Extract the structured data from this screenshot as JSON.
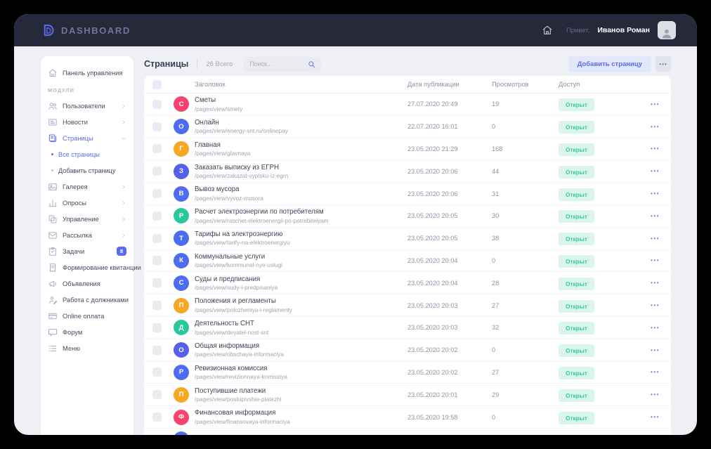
{
  "colors": {
    "accent": "#5b6af0",
    "topbar_bg": "#262939",
    "badge_bg": "#daf5ec",
    "badge_text": "#38c89a",
    "page_bg": "#eff0f6"
  },
  "icons": {
    "more_glyph": "•••",
    "row_menu_glyph": "•••"
  },
  "topbar": {
    "logo_text": "DASHBOARD",
    "greeting_prefix": "Привет,",
    "user_name": "Иванов Роман"
  },
  "sidebar": {
    "items": [
      {
        "id": "dashboard",
        "label": "Панель управления",
        "icon": "home-icon"
      },
      {
        "type": "section",
        "label": "МОДУЛИ"
      },
      {
        "id": "users",
        "label": "Пользователи",
        "icon": "users-icon",
        "chevron": true
      },
      {
        "id": "news",
        "label": "Новости",
        "icon": "news-icon",
        "chevron": true
      },
      {
        "id": "pages",
        "label": "Страницы",
        "icon": "pages-icon",
        "chevron": true,
        "expanded": true,
        "active": true,
        "children": [
          {
            "id": "all-pages",
            "label": "Все страницы",
            "active": true
          },
          {
            "id": "add-page",
            "label": "Добавить страницу"
          }
        ]
      },
      {
        "id": "gallery",
        "label": "Галерея",
        "icon": "gallery-icon",
        "chevron": true
      },
      {
        "id": "polls",
        "label": "Опросы",
        "icon": "polls-icon",
        "chevron": true
      },
      {
        "id": "management",
        "label": "Управление",
        "icon": "management-icon",
        "chevron": true
      },
      {
        "id": "mailing",
        "label": "Рассылка",
        "icon": "mailing-icon",
        "chevron": true
      },
      {
        "id": "tasks",
        "label": "Задачи",
        "icon": "tasks-icon",
        "badge": "8"
      },
      {
        "id": "receipts",
        "label": "Формирование квитанции",
        "icon": "receipt-icon"
      },
      {
        "id": "announcements",
        "label": "Объявления",
        "icon": "announcements-icon"
      },
      {
        "id": "debtors",
        "label": "Работа с должниками",
        "icon": "debtors-icon"
      },
      {
        "id": "online-payment",
        "label": "Online оплата",
        "icon": "online-payment-icon"
      },
      {
        "id": "forum",
        "label": "Форум",
        "icon": "forum-icon"
      },
      {
        "id": "menu",
        "label": "Меню",
        "icon": "menu-icon"
      }
    ]
  },
  "page": {
    "title": "Страницы",
    "total": "26 Всего",
    "search_placeholder": "Поиск...",
    "add_button": "Добавить страницу"
  },
  "table": {
    "columns": [
      "Заголовок",
      "Дата публикации",
      "Просмотров",
      "Доступ"
    ],
    "rows": [
      {
        "initial": "С",
        "color": "#f8426f",
        "title": "Сметы",
        "path": "/pages/view/smety",
        "date": "27.07.2020 20:49",
        "views": "19",
        "access": "Открыт"
      },
      {
        "initial": "О",
        "color": "#4e6cf0",
        "title": "Онлайн",
        "path": "/pages/view/energy-snt.ru/onlinepay",
        "date": "22.07.2020 16:01",
        "views": "0",
        "access": "Открыт"
      },
      {
        "initial": "Г",
        "color": "#f7a823",
        "title": "Главная",
        "path": "/pages/view/glavnaya",
        "date": "23.05.2020 21:29",
        "views": "168",
        "access": "Открыт"
      },
      {
        "initial": "З",
        "color": "#5661ea",
        "title": "Заказать выписку из ЕГРН",
        "path": "/pages/view/zakazat-vypisku-iz-egrn",
        "date": "23.05.2020 20:06",
        "views": "44",
        "access": "Открыт"
      },
      {
        "initial": "В",
        "color": "#4e6cf0",
        "title": "Вывоз мусора",
        "path": "/pages/view/vyvoz-musora",
        "date": "23.05.2020 20:06",
        "views": "31",
        "access": "Открыт"
      },
      {
        "initial": "Р",
        "color": "#2bc79c",
        "title": "Расчет электроэнергии по потребителям",
        "path": "/pages/view/raschet-elektroenergii-po-potrebitelyam",
        "date": "23.05.2020 20:05",
        "views": "30",
        "access": "Открыт"
      },
      {
        "initial": "Т",
        "color": "#4e6cf0",
        "title": "Тарифы на электроэнергию",
        "path": "/pages/view/tarify-na-elektroenergiyu",
        "date": "23.05.2020 20:05",
        "views": "38",
        "access": "Открыт"
      },
      {
        "initial": "К",
        "color": "#4e6cf0",
        "title": "Коммунальные услуги",
        "path": "/pages/view/kommunal-nye-uslugi",
        "date": "23.05.2020 20:04",
        "views": "0",
        "access": "Открыт"
      },
      {
        "initial": "С",
        "color": "#4e6cf0",
        "title": "Суды и предписания",
        "path": "/pages/view/sudy-i-predpisaniya",
        "date": "23.05.2020 20:04",
        "views": "28",
        "access": "Открыт"
      },
      {
        "initial": "П",
        "color": "#f7a823",
        "title": "Положения и регламенты",
        "path": "/pages/view/polozheniya-i-reglamenty",
        "date": "23.05.2020 20:03",
        "views": "27",
        "access": "Открыт"
      },
      {
        "initial": "Д",
        "color": "#2bc79c",
        "title": "Деятельность СНТ",
        "path": "/pages/view/deyatel-nost-snt",
        "date": "23.05.2020 20:03",
        "views": "32",
        "access": "Открыт"
      },
      {
        "initial": "О",
        "color": "#5661ea",
        "title": "Общая информация",
        "path": "/pages/view/obschaya-informaciya",
        "date": "23.05.2020 20:02",
        "views": "0",
        "access": "Открыт"
      },
      {
        "initial": "Р",
        "color": "#4e6cf0",
        "title": "Ревизионная комиссия",
        "path": "/pages/view/revizionnaya-komissiya",
        "date": "23.05.2020 20:02",
        "views": "27",
        "access": "Открыт"
      },
      {
        "initial": "П",
        "color": "#f7a823",
        "title": "Поступившие платежи",
        "path": "/pages/view/postupivshie-platezhi",
        "date": "23.05.2020 20:01",
        "views": "29",
        "access": "Открыт"
      },
      {
        "initial": "Ф",
        "color": "#f8426f",
        "title": "Финансовая информация",
        "path": "/pages/view/finansovaya-informaciya",
        "date": "23.05.2020 19:58",
        "views": "0",
        "access": "Открыт"
      },
      {
        "initial": "",
        "color": "#4e6cf0",
        "title": "",
        "path": "",
        "date": "",
        "views": "",
        "access": "",
        "partial": true
      }
    ]
  }
}
